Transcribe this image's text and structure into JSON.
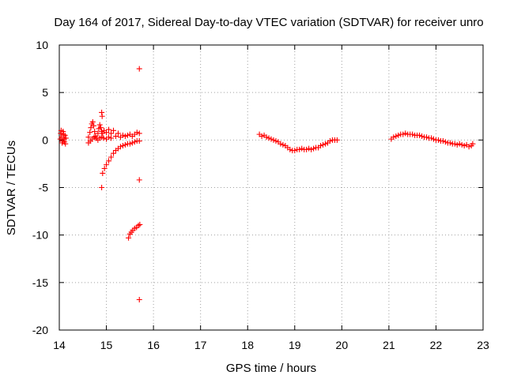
{
  "chart_data": {
    "type": "scatter",
    "title": "Day 164 of 2017, Sidereal Day-to-day VTEC variation (SDTVAR) for receiver unro",
    "xlabel": "GPS time / hours",
    "ylabel": "SDTVAR / TECUs",
    "xlim": [
      14,
      23
    ],
    "ylim": [
      -20,
      10
    ],
    "xticks": [
      "14",
      "15",
      "16",
      "17",
      "18",
      "19",
      "20",
      "21",
      "22",
      "23"
    ],
    "yticks": [
      "10",
      "5",
      "0",
      "-5",
      "-10",
      "-15",
      "-20"
    ],
    "grid": true,
    "marker": "+",
    "color": "#ff0000",
    "series": [
      {
        "name": "SDTVAR",
        "points": [
          [
            14.02,
            0.1
          ],
          [
            14.03,
            0.7
          ],
          [
            14.04,
            1.0
          ],
          [
            14.05,
            0.3
          ],
          [
            14.06,
            -0.3
          ],
          [
            14.07,
            -0.1
          ],
          [
            14.08,
            0.9
          ],
          [
            14.09,
            0.6
          ],
          [
            14.1,
            0.1
          ],
          [
            14.11,
            -0.2
          ],
          [
            14.12,
            0.5
          ],
          [
            14.13,
            -0.4
          ],
          [
            14.14,
            0.2
          ],
          [
            14.62,
            0.3
          ],
          [
            14.65,
            0.8
          ],
          [
            14.67,
            1.3
          ],
          [
            14.69,
            1.7
          ],
          [
            14.71,
            1.9
          ],
          [
            14.73,
            1.5
          ],
          [
            14.75,
            0.9
          ],
          [
            14.77,
            0.4
          ],
          [
            14.79,
            0.2
          ],
          [
            14.82,
            0.7
          ],
          [
            14.84,
            1.2
          ],
          [
            14.86,
            1.6
          ],
          [
            14.88,
            1.3
          ],
          [
            14.9,
            0.9
          ],
          [
            14.92,
            0.7
          ],
          [
            14.95,
            1.0
          ],
          [
            15.0,
            0.8
          ],
          [
            15.05,
            1.1
          ],
          [
            15.1,
            0.7
          ],
          [
            15.15,
            1.0
          ],
          [
            15.2,
            0.4
          ],
          [
            15.25,
            0.7
          ],
          [
            15.3,
            0.3
          ],
          [
            15.35,
            0.5
          ],
          [
            15.4,
            0.4
          ],
          [
            15.45,
            0.5
          ],
          [
            15.5,
            0.6
          ],
          [
            15.55,
            0.4
          ],
          [
            15.6,
            0.6
          ],
          [
            15.65,
            0.8
          ],
          [
            15.7,
            0.7
          ],
          [
            14.62,
            -0.3
          ],
          [
            14.66,
            -0.1
          ],
          [
            14.7,
            0.1
          ],
          [
            14.74,
            0.3
          ],
          [
            14.78,
            0.2
          ],
          [
            14.82,
            0.0
          ],
          [
            14.86,
            0.2
          ],
          [
            14.9,
            0.3
          ],
          [
            14.94,
            0.2
          ],
          [
            15.0,
            0.1
          ],
          [
            15.05,
            0.3
          ],
          [
            15.1,
            0.2
          ],
          [
            14.92,
            -3.5
          ],
          [
            14.96,
            -3.0
          ],
          [
            15.0,
            -2.6
          ],
          [
            15.05,
            -2.2
          ],
          [
            15.1,
            -1.8
          ],
          [
            15.15,
            -1.4
          ],
          [
            15.2,
            -1.1
          ],
          [
            15.25,
            -0.9
          ],
          [
            15.3,
            -0.7
          ],
          [
            15.35,
            -0.6
          ],
          [
            15.4,
            -0.5
          ],
          [
            15.45,
            -0.4
          ],
          [
            15.5,
            -0.4
          ],
          [
            15.55,
            -0.3
          ],
          [
            15.6,
            -0.2
          ],
          [
            15.65,
            -0.1
          ],
          [
            15.7,
            -0.1
          ],
          [
            15.47,
            -10.3
          ],
          [
            15.5,
            -9.9
          ],
          [
            15.53,
            -9.7
          ],
          [
            15.56,
            -9.5
          ],
          [
            15.6,
            -9.3
          ],
          [
            15.64,
            -9.2
          ],
          [
            15.68,
            -9.0
          ],
          [
            15.71,
            -8.9
          ],
          [
            14.9,
            2.9
          ],
          [
            14.91,
            2.5
          ],
          [
            14.9,
            -5.0
          ],
          [
            15.7,
            7.5
          ],
          [
            15.7,
            -4.2
          ],
          [
            15.7,
            -16.8
          ],
          [
            18.25,
            0.6
          ],
          [
            18.3,
            0.4
          ],
          [
            18.35,
            0.5
          ],
          [
            18.4,
            0.3
          ],
          [
            18.45,
            0.2
          ],
          [
            18.5,
            0.1
          ],
          [
            18.55,
            0.0
          ],
          [
            18.6,
            -0.1
          ],
          [
            18.65,
            -0.2
          ],
          [
            18.7,
            -0.4
          ],
          [
            18.75,
            -0.5
          ],
          [
            18.8,
            -0.6
          ],
          [
            18.85,
            -0.8
          ],
          [
            18.9,
            -1.0
          ],
          [
            18.95,
            -1.1
          ],
          [
            19.0,
            -1.1
          ],
          [
            19.05,
            -1.0
          ],
          [
            19.1,
            -1.0
          ],
          [
            19.15,
            -0.9
          ],
          [
            19.2,
            -1.0
          ],
          [
            19.25,
            -1.0
          ],
          [
            19.3,
            -0.9
          ],
          [
            19.35,
            -1.0
          ],
          [
            19.4,
            -0.9
          ],
          [
            19.45,
            -0.8
          ],
          [
            19.5,
            -0.8
          ],
          [
            19.55,
            -0.6
          ],
          [
            19.6,
            -0.5
          ],
          [
            19.65,
            -0.4
          ],
          [
            19.7,
            -0.3
          ],
          [
            19.75,
            -0.1
          ],
          [
            19.8,
            0.0
          ],
          [
            19.85,
            0.0
          ],
          [
            19.9,
            0.0
          ],
          [
            21.05,
            0.1
          ],
          [
            21.1,
            0.3
          ],
          [
            21.15,
            0.4
          ],
          [
            21.2,
            0.5
          ],
          [
            21.25,
            0.6
          ],
          [
            21.3,
            0.6
          ],
          [
            21.35,
            0.7
          ],
          [
            21.4,
            0.6
          ],
          [
            21.45,
            0.6
          ],
          [
            21.5,
            0.6
          ],
          [
            21.55,
            0.5
          ],
          [
            21.6,
            0.5
          ],
          [
            21.65,
            0.5
          ],
          [
            21.7,
            0.4
          ],
          [
            21.75,
            0.3
          ],
          [
            21.8,
            0.3
          ],
          [
            21.85,
            0.2
          ],
          [
            21.9,
            0.2
          ],
          [
            21.95,
            0.1
          ],
          [
            22.0,
            0.0
          ],
          [
            22.05,
            0.0
          ],
          [
            22.1,
            -0.1
          ],
          [
            22.15,
            -0.1
          ],
          [
            22.2,
            -0.2
          ],
          [
            22.25,
            -0.3
          ],
          [
            22.3,
            -0.3
          ],
          [
            22.35,
            -0.4
          ],
          [
            22.4,
            -0.4
          ],
          [
            22.45,
            -0.5
          ],
          [
            22.5,
            -0.4
          ],
          [
            22.55,
            -0.5
          ],
          [
            22.6,
            -0.6
          ],
          [
            22.65,
            -0.5
          ],
          [
            22.7,
            -0.7
          ],
          [
            22.75,
            -0.6
          ],
          [
            22.78,
            -0.4
          ]
        ]
      }
    ]
  }
}
